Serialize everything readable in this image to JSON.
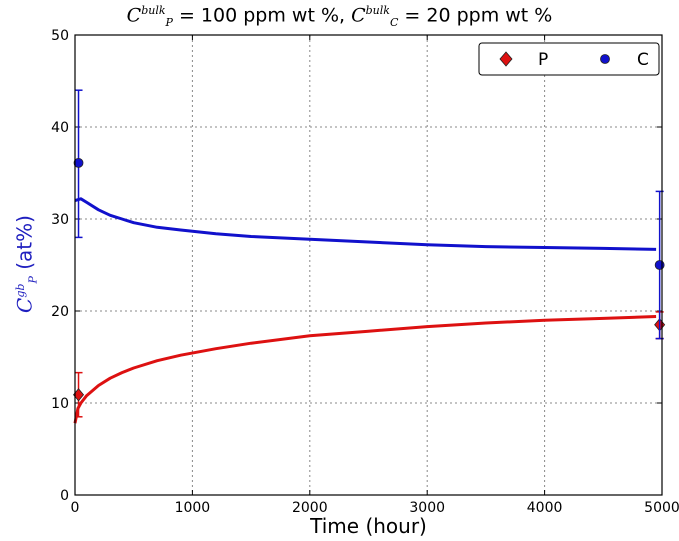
{
  "chart_data": {
    "type": "line",
    "title_parts": {
      "p_sym": "C",
      "p_sup": "bulk",
      "p_sub": "P",
      "p_text": " = 100 ppm wt %, ",
      "c_sym": "C",
      "c_sup": "bulk",
      "c_sub": "C",
      "c_text": " = 20 ppm wt %"
    },
    "xlabel": "Time (hour)",
    "ylabel_parts": {
      "sym": "C",
      "sup": "gb",
      "sub": "P",
      "unit": " (at%)"
    },
    "xlim": [
      0,
      5000
    ],
    "ylim": [
      0,
      50
    ],
    "x_ticks": [
      0,
      1000,
      2000,
      3000,
      4000,
      5000
    ],
    "y_ticks": [
      0,
      10,
      20,
      30,
      40,
      50
    ],
    "grid": true,
    "legend_position": "top-right",
    "series": [
      {
        "name": "P",
        "color": "#dd1111",
        "marker": "diamond",
        "line_points": [
          [
            0,
            7.8
          ],
          [
            25,
            9.4
          ],
          [
            50,
            10.0
          ],
          [
            100,
            10.8
          ],
          [
            200,
            11.9
          ],
          [
            300,
            12.7
          ],
          [
            400,
            13.3
          ],
          [
            500,
            13.8
          ],
          [
            700,
            14.6
          ],
          [
            900,
            15.2
          ],
          [
            1200,
            15.9
          ],
          [
            1500,
            16.5
          ],
          [
            2000,
            17.3
          ],
          [
            2500,
            17.8
          ],
          [
            3000,
            18.3
          ],
          [
            3500,
            18.7
          ],
          [
            4000,
            19.0
          ],
          [
            4500,
            19.2
          ],
          [
            4950,
            19.4
          ]
        ],
        "measured": [
          {
            "x": 30,
            "y": 10.9,
            "err_low": 8.5,
            "err_high": 13.3
          },
          {
            "x": 4980,
            "y": 18.5,
            "err_low": 17.0,
            "err_high": 19.9
          }
        ]
      },
      {
        "name": "C",
        "color": "#1111cc",
        "marker": "circle",
        "line_points": [
          [
            0,
            32.0
          ],
          [
            50,
            32.2
          ],
          [
            100,
            31.8
          ],
          [
            200,
            31.0
          ],
          [
            300,
            30.4
          ],
          [
            400,
            30.0
          ],
          [
            500,
            29.6
          ],
          [
            700,
            29.1
          ],
          [
            900,
            28.8
          ],
          [
            1200,
            28.4
          ],
          [
            1500,
            28.1
          ],
          [
            2000,
            27.8
          ],
          [
            2500,
            27.5
          ],
          [
            3000,
            27.2
          ],
          [
            3500,
            27.0
          ],
          [
            4000,
            26.9
          ],
          [
            4500,
            26.8
          ],
          [
            4950,
            26.7
          ]
        ],
        "measured": [
          {
            "x": 30,
            "y": 36.1,
            "err_low": 28.0,
            "err_high": 44.0
          },
          {
            "x": 4980,
            "y": 25.0,
            "err_low": 17.0,
            "err_high": 33.0
          }
        ]
      }
    ]
  }
}
